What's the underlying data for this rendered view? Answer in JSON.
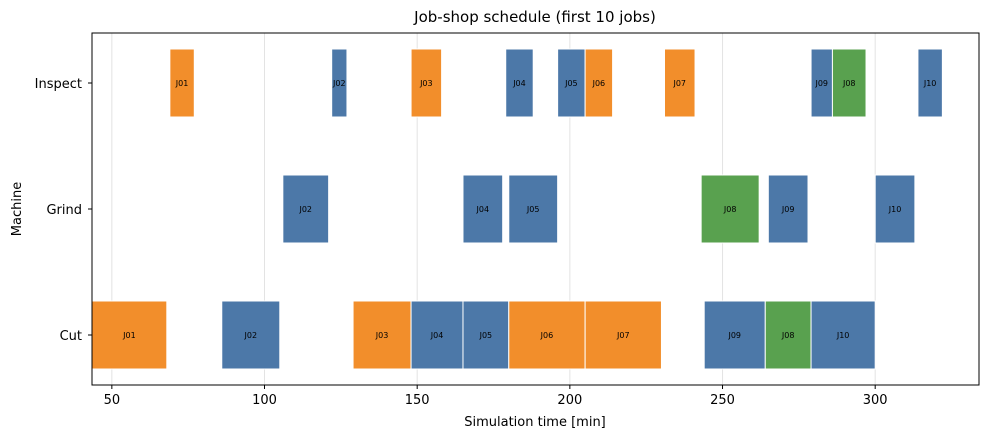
{
  "chart_data": {
    "type": "gantt",
    "title": "Job-shop schedule (first 10 jobs)",
    "xlabel": "Simulation time [min]",
    "ylabel": "Machine",
    "xlim": [
      43.5,
      334
    ],
    "x_ticks": [
      50,
      100,
      150,
      200,
      250,
      300
    ],
    "machines": [
      "Cut",
      "Grind",
      "Inspect"
    ],
    "grid": "x",
    "colors": {
      "blue": "#4c78a8",
      "orange": "#f28e2b",
      "green": "#59a14f"
    },
    "tasks": [
      {
        "machine": "Inspect",
        "job": "J01",
        "start": 69,
        "end": 77,
        "color": "orange"
      },
      {
        "machine": "Inspect",
        "job": "J02",
        "start": 122,
        "end": 127,
        "color": "blue"
      },
      {
        "machine": "Inspect",
        "job": "J03",
        "start": 148,
        "end": 158,
        "color": "orange"
      },
      {
        "machine": "Inspect",
        "job": "J04",
        "start": 179,
        "end": 188,
        "color": "blue"
      },
      {
        "machine": "Inspect",
        "job": "J05",
        "start": 196,
        "end": 205,
        "color": "blue"
      },
      {
        "machine": "Inspect",
        "job": "J06",
        "start": 205,
        "end": 214,
        "color": "orange"
      },
      {
        "machine": "Inspect",
        "job": "J07",
        "start": 231,
        "end": 241,
        "color": "orange"
      },
      {
        "machine": "Inspect",
        "job": "J09",
        "start": 279,
        "end": 286,
        "color": "blue"
      },
      {
        "machine": "Inspect",
        "job": "J08",
        "start": 286,
        "end": 297,
        "color": "green"
      },
      {
        "machine": "Inspect",
        "job": "J10",
        "start": 314,
        "end": 322,
        "color": "blue"
      },
      {
        "machine": "Grind",
        "job": "J02",
        "start": 106,
        "end": 121,
        "color": "blue"
      },
      {
        "machine": "Grind",
        "job": "J04",
        "start": 165,
        "end": 178,
        "color": "blue"
      },
      {
        "machine": "Grind",
        "job": "J05",
        "start": 180,
        "end": 196,
        "color": "blue"
      },
      {
        "machine": "Grind",
        "job": "J08",
        "start": 243,
        "end": 262,
        "color": "green"
      },
      {
        "machine": "Grind",
        "job": "J09",
        "start": 265,
        "end": 278,
        "color": "blue"
      },
      {
        "machine": "Grind",
        "job": "J10",
        "start": 300,
        "end": 313,
        "color": "blue"
      },
      {
        "machine": "Cut",
        "job": "J01",
        "start": 43.5,
        "end": 68,
        "color": "orange"
      },
      {
        "machine": "Cut",
        "job": "J02",
        "start": 86,
        "end": 105,
        "color": "blue"
      },
      {
        "machine": "Cut",
        "job": "J03",
        "start": 129,
        "end": 148,
        "color": "orange"
      },
      {
        "machine": "Cut",
        "job": "J04",
        "start": 148,
        "end": 165,
        "color": "blue"
      },
      {
        "machine": "Cut",
        "job": "J05",
        "start": 165,
        "end": 180,
        "color": "blue"
      },
      {
        "machine": "Cut",
        "job": "J06",
        "start": 180,
        "end": 205,
        "color": "orange"
      },
      {
        "machine": "Cut",
        "job": "J07",
        "start": 205,
        "end": 230,
        "color": "orange"
      },
      {
        "machine": "Cut",
        "job": "J09",
        "start": 244,
        "end": 264,
        "color": "blue"
      },
      {
        "machine": "Cut",
        "job": "J08",
        "start": 264,
        "end": 279,
        "color": "green"
      },
      {
        "machine": "Cut",
        "job": "J10",
        "start": 279,
        "end": 300,
        "color": "blue"
      }
    ]
  }
}
